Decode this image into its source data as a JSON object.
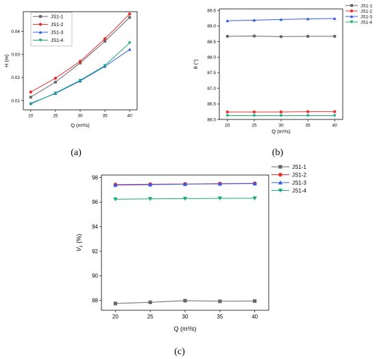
{
  "panel_labels": [
    "(a)",
    "(b)",
    "(c)"
  ],
  "series_colors": {
    "JS1-1": "#666666",
    "JS1-2": "#e8312f",
    "JS1-3": "#2f5be8",
    "JS1-4": "#15a879"
  },
  "chart_data": [
    {
      "type": "line",
      "panel": "(a)",
      "xlabel": "Q (m³/s)",
      "ylabel": "H (m)",
      "x": [
        20,
        25,
        30,
        35,
        40
      ],
      "xlim": [
        18.5,
        41.5
      ],
      "ylim": [
        0.006,
        0.0485
      ],
      "xticks": [
        "20",
        "25",
        "30",
        "35",
        "40"
      ],
      "yticks": [
        0.01,
        0.02,
        0.03,
        0.04
      ],
      "ytick_labels": [
        "0.01",
        "0.02",
        "0.03",
        "0.04"
      ],
      "legend": "top-left",
      "grid": false,
      "series": [
        {
          "name": "JS1-1",
          "marker": "square",
          "values": [
            0.0115,
            0.018,
            0.0263,
            0.0357,
            0.046
          ]
        },
        {
          "name": "JS1-2",
          "marker": "circle",
          "values": [
            0.0137,
            0.0197,
            0.027,
            0.0368,
            0.0475
          ]
        },
        {
          "name": "JS1-3",
          "marker": "triangle-up",
          "values": [
            0.0088,
            0.0131,
            0.0185,
            0.0248,
            0.0321
          ]
        },
        {
          "name": "JS1-4",
          "marker": "triangle-down",
          "values": [
            0.0085,
            0.0133,
            0.0188,
            0.0252,
            0.035
          ]
        }
      ]
    },
    {
      "type": "line",
      "panel": "(b)",
      "xlabel": "Q (m³/s)",
      "ylabel": "θ (°)",
      "x": [
        20,
        25,
        30,
        35,
        40
      ],
      "xlim": [
        18.5,
        41.5
      ],
      "ylim": [
        86.0,
        89.55
      ],
      "xticks": [
        "20",
        "25",
        "30",
        "35",
        "40"
      ],
      "yticks": [
        86.0,
        86.5,
        87.0,
        87.5,
        88.0,
        88.5,
        89.0,
        89.5
      ],
      "ytick_labels": [
        "86.0",
        "86.5",
        "87.0",
        "87.5",
        "88.0",
        "88.5",
        "89.0",
        "89.5"
      ],
      "legend": "top-right",
      "grid": false,
      "series": [
        {
          "name": "JS1-1",
          "marker": "square",
          "values": [
            88.67,
            88.68,
            88.66,
            88.67,
            88.67
          ]
        },
        {
          "name": "JS1-2",
          "marker": "circle",
          "values": [
            86.24,
            86.24,
            86.24,
            86.25,
            86.25
          ]
        },
        {
          "name": "JS1-3",
          "marker": "triangle-up",
          "values": [
            89.17,
            89.19,
            89.21,
            89.23,
            89.24
          ]
        },
        {
          "name": "JS1-4",
          "marker": "triangle-down",
          "values": [
            86.12,
            86.12,
            86.12,
            86.12,
            86.12
          ]
        }
      ]
    },
    {
      "type": "line",
      "panel": "(c)",
      "xlabel": "Q (m³/s)",
      "ylabel": "Vz (%)",
      "ylabel_main": "V",
      "ylabel_sub": "z",
      "ylabel_unit": " (%)",
      "x": [
        20,
        25,
        30,
        35,
        40
      ],
      "xlim": [
        18,
        42
      ],
      "ylim": [
        87.2,
        98.2
      ],
      "xticks": [
        "20",
        "25",
        "30",
        "35",
        "40"
      ],
      "yticks": [
        88,
        90,
        92,
        94,
        96,
        98
      ],
      "ytick_labels": [
        "88",
        "90",
        "92",
        "94",
        "96",
        "98"
      ],
      "legend": "top-right",
      "grid": false,
      "series": [
        {
          "name": "JS1-1",
          "marker": "square",
          "values": [
            87.75,
            87.85,
            87.98,
            87.93,
            87.95
          ]
        },
        {
          "name": "JS1-2",
          "marker": "circle",
          "values": [
            97.42,
            97.45,
            97.47,
            97.5,
            97.52
          ]
        },
        {
          "name": "JS1-3",
          "marker": "triangle-up",
          "values": [
            97.38,
            97.42,
            97.46,
            97.48,
            97.5
          ]
        },
        {
          "name": "JS1-4",
          "marker": "triangle-down",
          "values": [
            96.23,
            96.26,
            96.28,
            96.3,
            96.31
          ]
        }
      ]
    }
  ]
}
